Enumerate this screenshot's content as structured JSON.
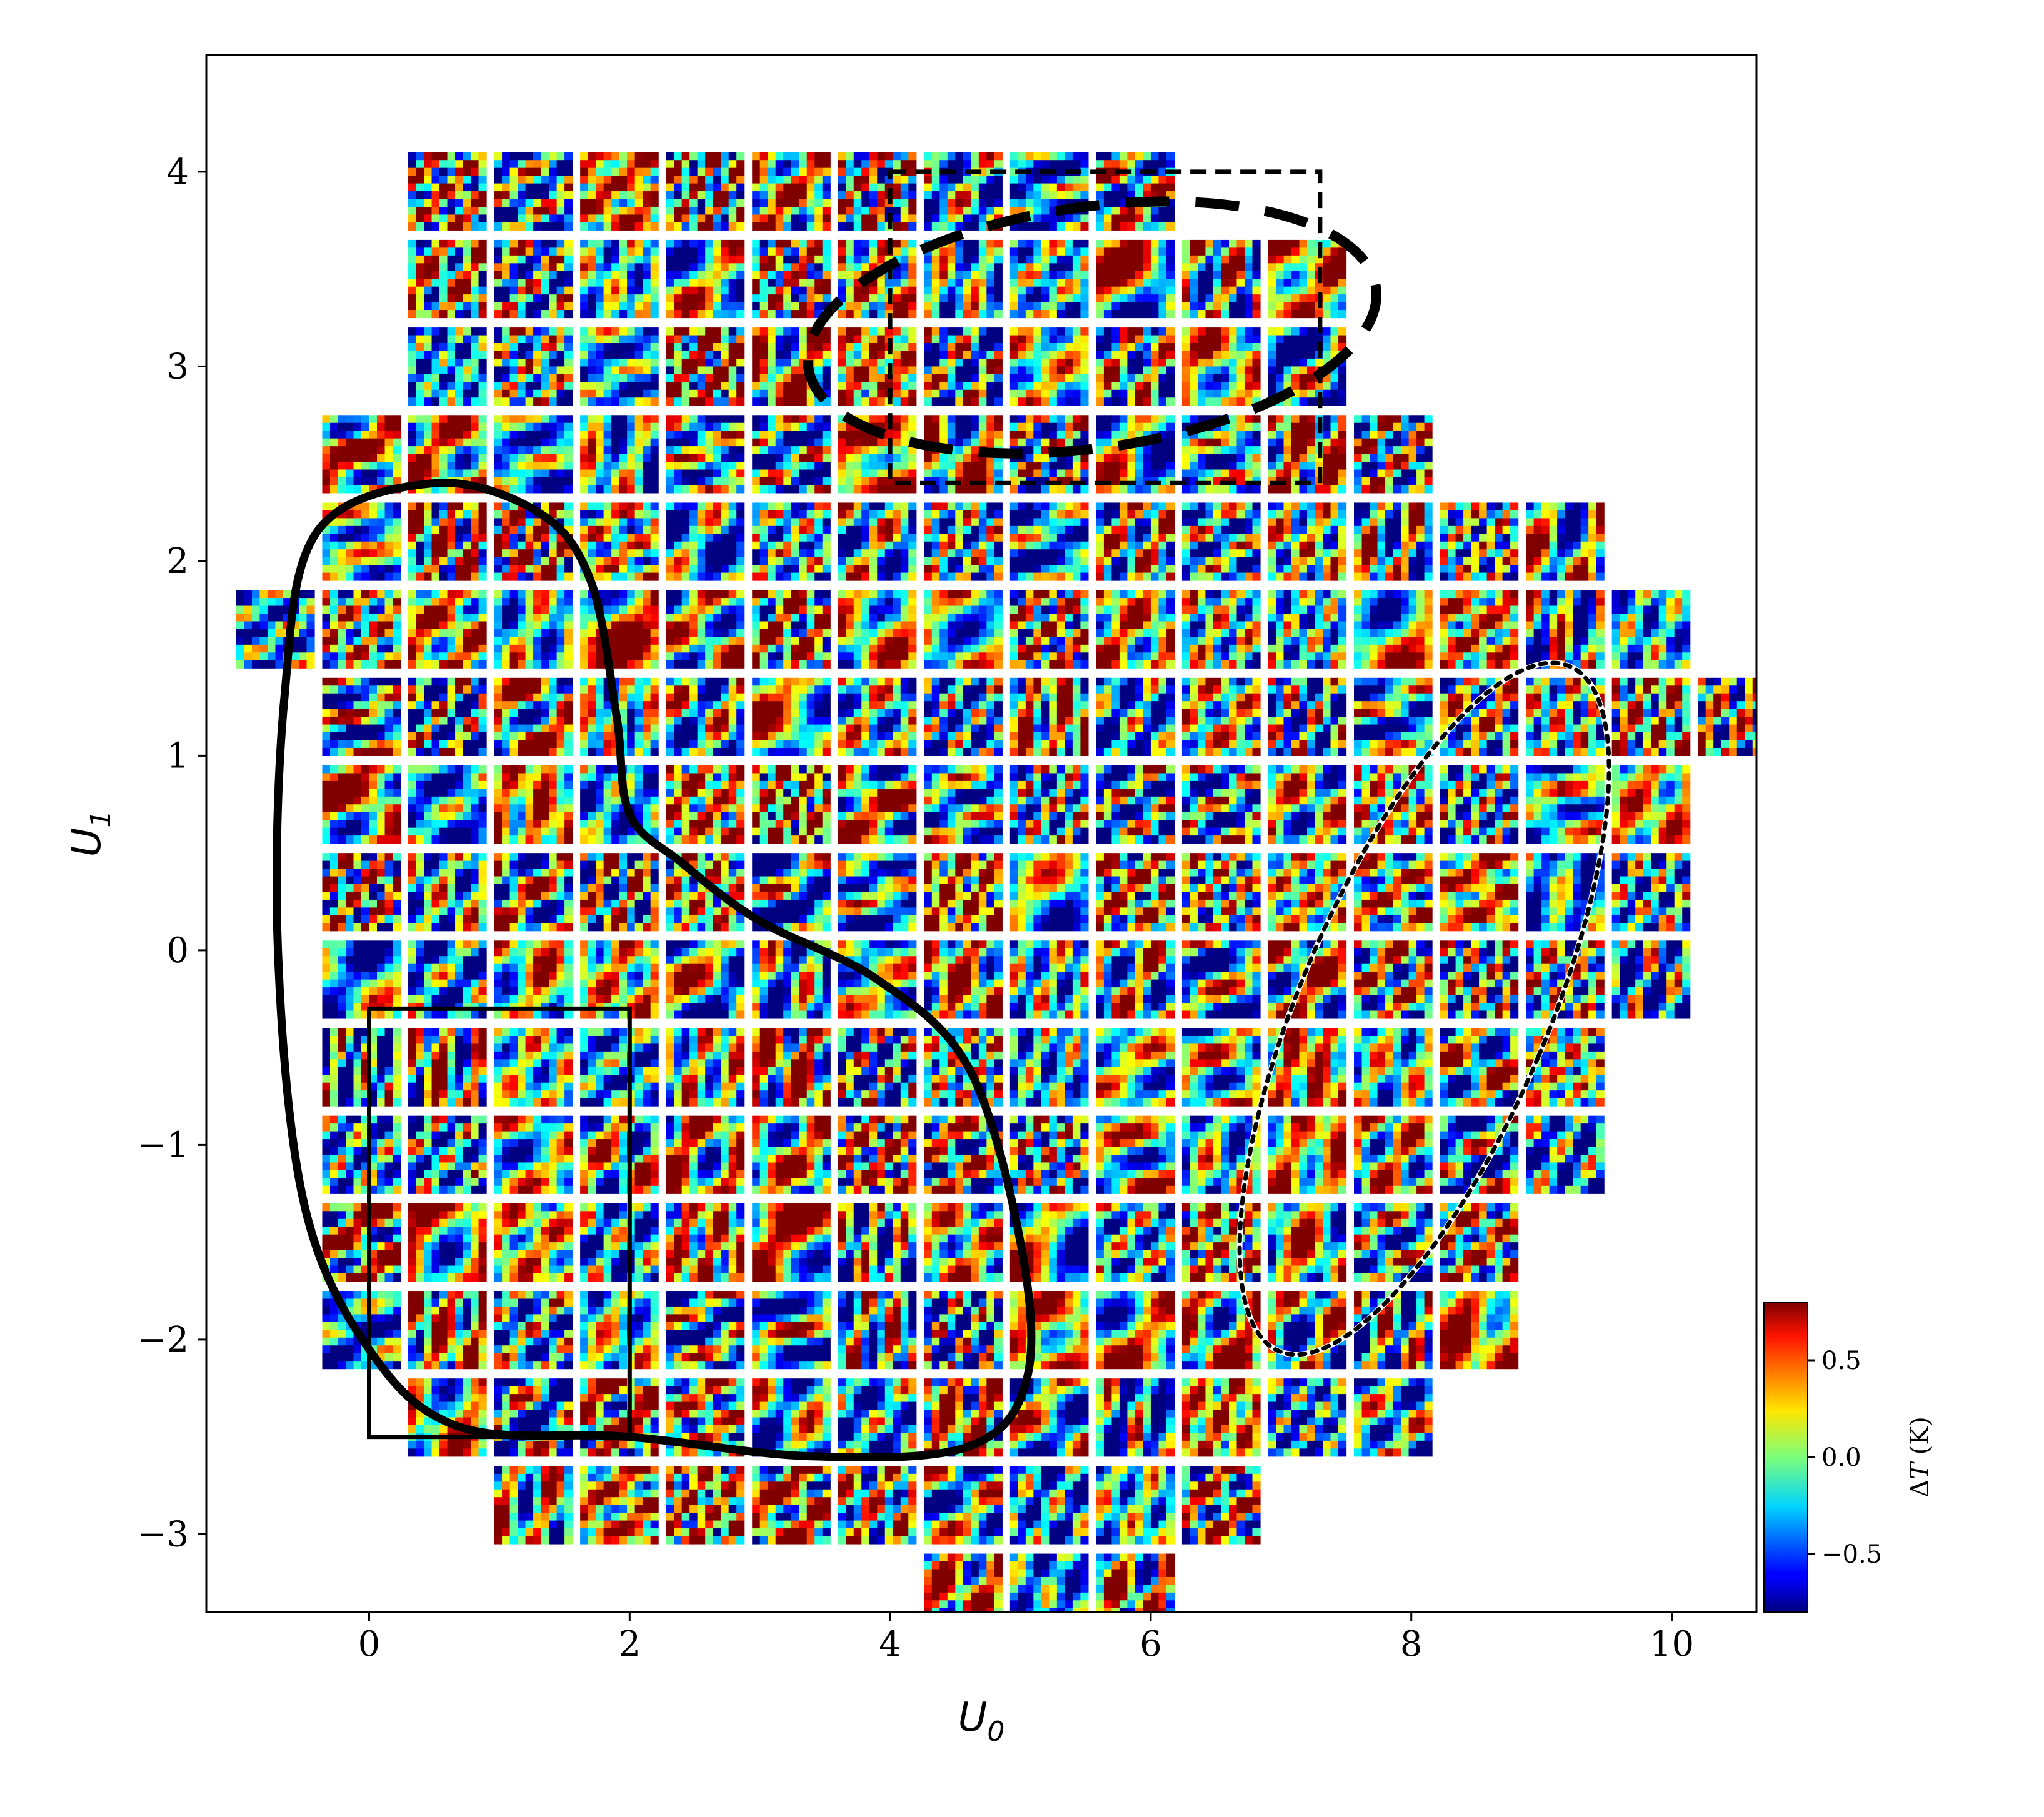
{
  "chart_data": {
    "type": "heatmap",
    "title": "",
    "xlabel": "U",
    "xlabel_sub": "0",
    "ylabel": "U",
    "ylabel_sub": "1",
    "xlim": [
      -1.25,
      10.65
    ],
    "ylim": [
      -3.4,
      4.6
    ],
    "xticks": [
      0,
      2,
      4,
      6,
      8,
      10
    ],
    "xtick_labels": [
      "0",
      "2",
      "4",
      "6",
      "8",
      "10"
    ],
    "yticks": [
      -3,
      -2,
      -1,
      0,
      1,
      2,
      3,
      4
    ],
    "ytick_labels": [
      "−3",
      "−2",
      "−1",
      "0",
      "1",
      "2",
      "3",
      "4"
    ],
    "grid": false,
    "tile_size": [
      0.6,
      0.4
    ],
    "tile_spacing": [
      0.66,
      0.445
    ],
    "tile_rows": [
      {
        "y": 3.9,
        "x": [
          0.6,
          1.26,
          1.92,
          2.58,
          3.24,
          3.9,
          4.56,
          5.22,
          5.88
        ]
      },
      {
        "y": 3.45,
        "x": [
          0.6,
          1.26,
          1.92,
          2.58,
          3.24,
          3.9,
          4.56,
          5.22,
          5.88,
          6.54,
          7.2
        ]
      },
      {
        "y": 3.0,
        "x": [
          0.6,
          1.26,
          1.92,
          2.58,
          3.24,
          3.9,
          4.56,
          5.22,
          5.88,
          6.54,
          7.2
        ]
      },
      {
        "y": 2.55,
        "x": [
          -0.06,
          0.6,
          1.26,
          1.92,
          2.58,
          3.24,
          3.9,
          4.56,
          5.22,
          5.88,
          6.54,
          7.2,
          7.86
        ]
      },
      {
        "y": 2.1,
        "x": [
          -0.06,
          0.6,
          1.26,
          1.92,
          2.58,
          3.24,
          3.9,
          4.56,
          5.22,
          5.88,
          6.54,
          7.2,
          7.86,
          8.52,
          9.18
        ]
      },
      {
        "y": 1.65,
        "x": [
          -0.72,
          -0.06,
          0.6,
          1.26,
          1.92,
          2.58,
          3.24,
          3.9,
          4.56,
          5.22,
          5.88,
          6.54,
          7.2,
          7.86,
          8.52,
          9.18,
          9.84
        ]
      },
      {
        "y": 1.2,
        "x": [
          -0.06,
          0.6,
          1.26,
          1.92,
          2.58,
          3.24,
          3.9,
          4.56,
          5.22,
          5.88,
          6.54,
          7.2,
          7.86,
          8.52,
          9.18,
          9.84,
          10.5
        ]
      },
      {
        "y": 0.75,
        "x": [
          -0.06,
          0.6,
          1.26,
          1.92,
          2.58,
          3.24,
          3.9,
          4.56,
          5.22,
          5.88,
          6.54,
          7.2,
          7.86,
          8.52,
          9.18,
          9.84
        ]
      },
      {
        "y": 0.3,
        "x": [
          -0.06,
          0.6,
          1.26,
          1.92,
          2.58,
          3.24,
          3.9,
          4.56,
          5.22,
          5.88,
          6.54,
          7.2,
          7.86,
          8.52,
          9.18,
          9.84
        ]
      },
      {
        "y": -0.15,
        "x": [
          -0.06,
          0.6,
          1.26,
          1.92,
          2.58,
          3.24,
          3.9,
          4.56,
          5.22,
          5.88,
          6.54,
          7.2,
          7.86,
          8.52,
          9.18,
          9.84
        ]
      },
      {
        "y": -0.6,
        "x": [
          -0.06,
          0.6,
          1.26,
          1.92,
          2.58,
          3.24,
          3.9,
          4.56,
          5.22,
          5.88,
          6.54,
          7.2,
          7.86,
          8.52,
          9.18
        ]
      },
      {
        "y": -1.05,
        "x": [
          -0.06,
          0.6,
          1.26,
          1.92,
          2.58,
          3.24,
          3.9,
          4.56,
          5.22,
          5.88,
          6.54,
          7.2,
          7.86,
          8.52,
          9.18
        ]
      },
      {
        "y": -1.5,
        "x": [
          -0.06,
          0.6,
          1.26,
          1.92,
          2.58,
          3.24,
          3.9,
          4.56,
          5.22,
          5.88,
          6.54,
          7.2,
          7.86,
          8.52
        ]
      },
      {
        "y": -1.95,
        "x": [
          -0.06,
          0.6,
          1.26,
          1.92,
          2.58,
          3.24,
          3.9,
          4.56,
          5.22,
          5.88,
          6.54,
          7.2,
          7.86,
          8.52
        ]
      },
      {
        "y": -2.4,
        "x": [
          0.6,
          1.26,
          1.92,
          2.58,
          3.24,
          3.9,
          4.56,
          5.22,
          5.88,
          6.54,
          7.2,
          7.86
        ]
      },
      {
        "y": -2.85,
        "x": [
          1.26,
          1.92,
          2.58,
          3.24,
          3.9,
          4.56,
          5.22,
          5.88,
          6.54
        ]
      },
      {
        "y": -3.3,
        "x": [
          4.56,
          5.22,
          5.88
        ]
      }
    ],
    "annotations": [
      {
        "shape": "rectangle",
        "style": "solid",
        "x": [
          0,
          2
        ],
        "y": [
          -2.5,
          -0.3
        ]
      },
      {
        "shape": "rectangle",
        "style": "dashed",
        "x": [
          4,
          7.3
        ],
        "y": [
          2.4,
          4.0
        ]
      },
      {
        "shape": "ellipse",
        "style": "dashed-heavy",
        "center": [
          5.55,
          3.2
        ],
        "radii": [
          4.35,
          1.05
        ],
        "rotation_deg": -8
      },
      {
        "shape": "ellipse",
        "style": "dotted",
        "center": [
          8.1,
          -0.3
        ],
        "radii": [
          0.95,
          2.45
        ],
        "rotation_deg": 23
      },
      {
        "shape": "blob",
        "style": "solid-heavy",
        "outline": [
          [
            0.5,
            2.4
          ],
          [
            1.3,
            2.25
          ],
          [
            1.7,
            1.9
          ],
          [
            1.9,
            1.2
          ],
          [
            2.0,
            0.7
          ],
          [
            2.4,
            0.45
          ],
          [
            3.0,
            0.15
          ],
          [
            3.9,
            -0.15
          ],
          [
            4.6,
            -0.6
          ],
          [
            5.0,
            -1.5
          ],
          [
            5.05,
            -2.2
          ],
          [
            4.6,
            -2.55
          ],
          [
            3.4,
            -2.6
          ],
          [
            2.0,
            -2.5
          ],
          [
            0.7,
            -2.45
          ],
          [
            0.0,
            -2.05
          ],
          [
            -0.5,
            -1.3
          ],
          [
            -0.7,
            0.0
          ],
          [
            -0.65,
            1.3
          ],
          [
            -0.4,
            2.15
          ]
        ]
      }
    ],
    "colorbar": {
      "label": "ΔT (K)",
      "label_symbol": "Δ",
      "label_var": "T",
      "label_unit": " (K)",
      "range": [
        -0.8,
        0.8
      ],
      "ticks": [
        0.5,
        0.0,
        -0.5
      ],
      "tick_labels": [
        "0.5",
        "0.0",
        "−0.5"
      ],
      "colormap": "jet"
    }
  }
}
